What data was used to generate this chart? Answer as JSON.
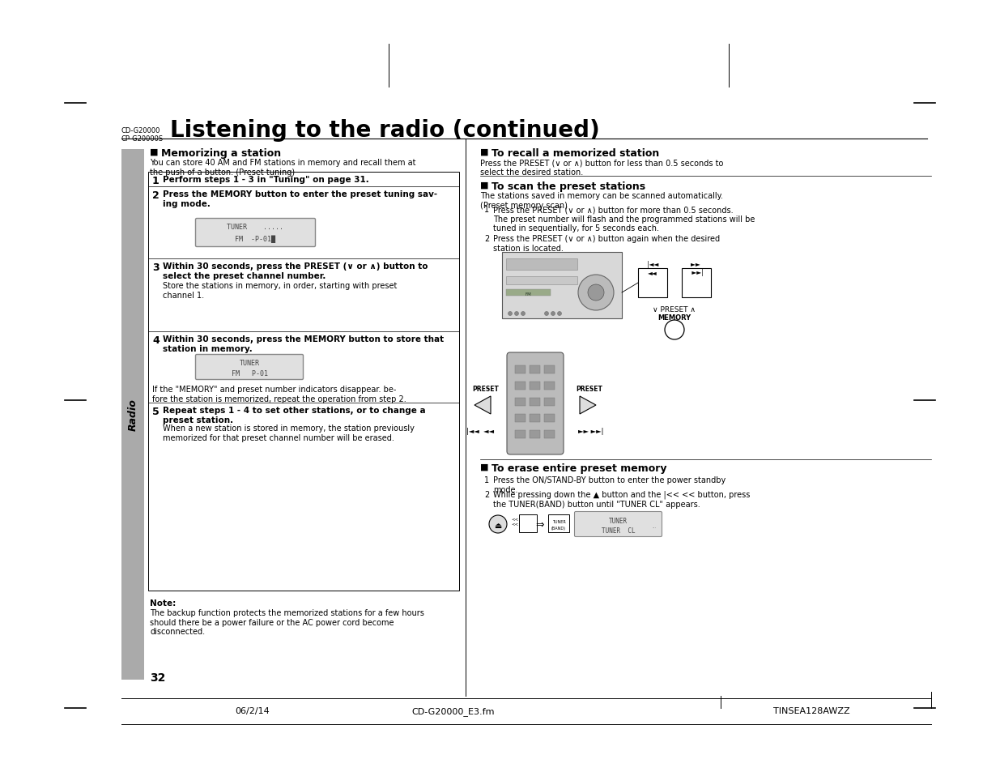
{
  "page_bg": "#ffffff",
  "title": "Listening to the radio (continued)",
  "model_text": "CD-G20000\nCP-G20000S",
  "left_col_header": "Memorizing a station",
  "left_col_intro": "You can store 40 AM and FM stations in memory and recall them at\nthe push of a button. (Preset tuning)",
  "step1_bold": "Perform steps 1 - 3 in \"Tuning\" on page 31.",
  "step2_bold": "Press the MEMORY button to enter the preset tuning sav-\ning mode.",
  "step3_bold": "Within 30 seconds, press the PRESET (∨ or ∧) button to\nselect the preset channel number.",
  "step3_normal": "Store the stations in memory, in order, starting with preset\nchannel 1.",
  "step4_bold": "Within 30 seconds, press the MEMORY button to store that\nstation in memory.",
  "memory_note": "If the \"MEMORY\" and preset number indicators disappear. be-\nfore the station is memorized, repeat the operation from step 2.",
  "step5_bold": "Repeat steps 1 - 4 to set other stations, or to change a\npreset station.",
  "step5_normal": "When a new station is stored in memory, the station previously\nmemorized for that preset channel number will be erased.",
  "note_title": "Note:",
  "note_text": "The backup function protects the memorized stations for a few hours\nshould there be a power failure or the AC power cord become\ndisconnected.",
  "right_col_header1": "To recall a memorized station",
  "right_col_text1": "Press the PRESET (∨ or ∧) button for less than 0.5 seconds to\nselect the desired station.",
  "right_col_header2": "To scan the preset stations",
  "right_col_text2": "The stations saved in memory can be scanned automatically.\n(Preset memory scan)",
  "scan_step1": "Press the PRESET (∨ or ∧) button for more than 0.5 seconds.\nThe preset number will flash and the programmed stations will be\ntuned in sequentially, for 5 seconds each.",
  "scan_step2": "Press the PRESET (∨ or ∧) button again when the desired\nstation is located.",
  "right_col_header3": "To erase entire preset memory",
  "erase_step1": "Press the ON/STAND-BY button to enter the power standby\nmode.",
  "erase_step2": "While pressing down the ▲ button and the |<< << button, press\nthe TUNER(BAND) button until \"TUNER CL\" appears.",
  "page_num": "32",
  "footer_left": "06/2/14",
  "footer_center": "CD-G20000_E3.fm",
  "footer_right": "TINSEA128AWZZ",
  "sidebar_text": "Radio",
  "gray_sidebar": "#aaaaaa",
  "black": "#000000",
  "white": "#ffffff",
  "light_gray": "#cccccc",
  "display_bg": "#e0e0e0",
  "display_border": "#888888"
}
